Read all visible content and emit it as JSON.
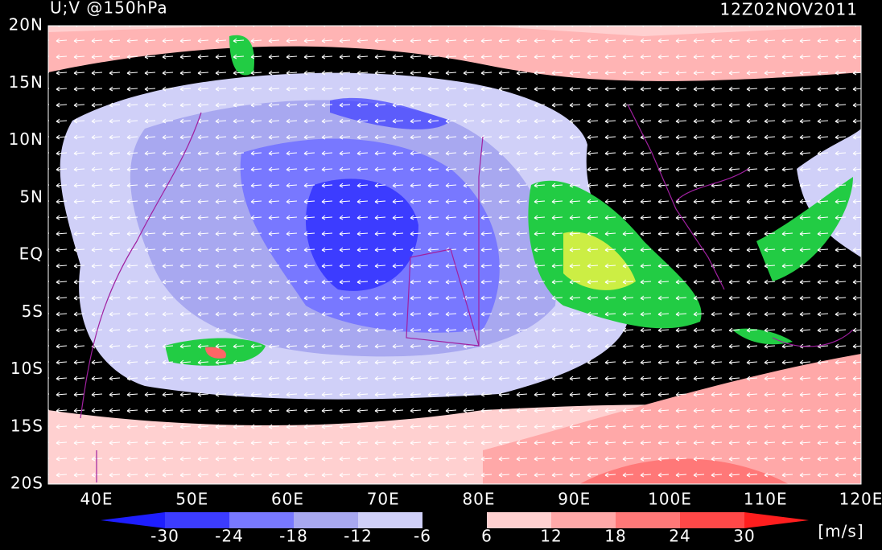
{
  "header": {
    "title": "U;V @150hPa",
    "time": "12Z02NOV2011"
  },
  "axes": {
    "lat_labels": [
      "20N",
      "15N",
      "10N",
      "5N",
      "EQ",
      "5S",
      "10S",
      "15S",
      "20S"
    ],
    "lon_labels": [
      "40E",
      "50E",
      "60E",
      "70E",
      "80E",
      "90E",
      "100E",
      "110E",
      "120E"
    ]
  },
  "colorbar": {
    "ticks": [
      -30,
      -24,
      -18,
      -12,
      -6,
      6,
      12,
      18,
      24,
      30
    ],
    "colors": [
      "#1e1eff",
      "#3c3cff",
      "#7878ff",
      "#a8a8f0",
      "#d0d0f8",
      "#000000",
      "#ffd0d0",
      "#ffa8a8",
      "#ff7878",
      "#ff4848",
      "#ff1e1e"
    ],
    "unit": "[m/s]"
  }
}
